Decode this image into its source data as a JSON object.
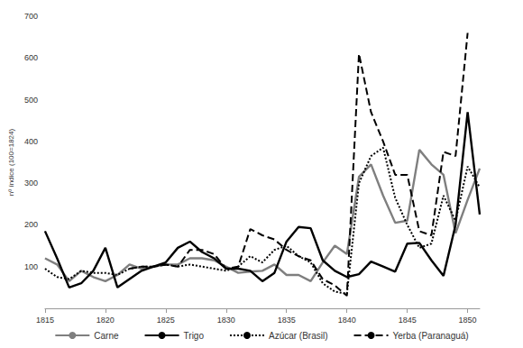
{
  "chart_data": {
    "type": "line",
    "y_label": "nº índice (100=1824)",
    "x": [
      1815,
      1816,
      1817,
      1818,
      1819,
      1820,
      1821,
      1822,
      1823,
      1824,
      1825,
      1826,
      1827,
      1828,
      1829,
      1830,
      1831,
      1832,
      1833,
      1834,
      1835,
      1836,
      1837,
      1838,
      1839,
      1840,
      1841,
      1842,
      1843,
      1844,
      1845,
      1846,
      1847,
      1848,
      1849,
      1850,
      1851
    ],
    "series": [
      {
        "name": "Carne",
        "color": "#7f7f7f",
        "line_style": "solid",
        "values": [
          120,
          105,
          65,
          90,
          75,
          65,
          80,
          105,
          95,
          100,
          105,
          105,
          120,
          120,
          115,
          100,
          85,
          88,
          90,
          105,
          80,
          80,
          65,
          110,
          150,
          130,
          315,
          345,
          270,
          205,
          210,
          380,
          345,
          320,
          180,
          260,
          335
        ]
      },
      {
        "name": "Trigo",
        "color": "#000000",
        "line_style": "solid",
        "values": [
          185,
          120,
          50,
          60,
          90,
          145,
          50,
          70,
          90,
          100,
          110,
          145,
          160,
          135,
          120,
          95,
          95,
          90,
          65,
          85,
          160,
          195,
          192,
          115,
          90,
          75,
          82,
          112,
          100,
          88,
          155,
          157,
          115,
          78,
          200,
          470,
          225
        ]
      },
      {
        "name": "Azúcar (Brasil)",
        "color": "#000000",
        "line_style": "dotted",
        "values": [
          95,
          75,
          70,
          90,
          85,
          85,
          80,
          95,
          100,
          100,
          105,
          100,
          105,
          100,
          95,
          90,
          100,
          125,
          110,
          140,
          150,
          125,
          110,
          60,
          40,
          35,
          300,
          365,
          385,
          265,
          200,
          145,
          155,
          270,
          210,
          340,
          290
        ]
      },
      {
        "name": "Yerba (Paranaguá)",
        "color": "#000000",
        "line_style": "dashed",
        "values": [
          null,
          null,
          null,
          null,
          null,
          null,
          null,
          95,
          100,
          100,
          105,
          100,
          140,
          140,
          130,
          95,
          100,
          190,
          175,
          165,
          140,
          125,
          115,
          70,
          55,
          30,
          610,
          470,
          400,
          320,
          320,
          185,
          175,
          375,
          365,
          660,
          null
        ]
      }
    ],
    "xlim": [
      1815,
      1851
    ],
    "xticks": [
      1815,
      1820,
      1825,
      1830,
      1835,
      1840,
      1845,
      1850
    ],
    "ylim": [
      0,
      700
    ],
    "yticks": [
      100,
      200,
      300,
      400,
      500,
      600,
      700
    ],
    "grid": false,
    "legend": "bottom"
  }
}
